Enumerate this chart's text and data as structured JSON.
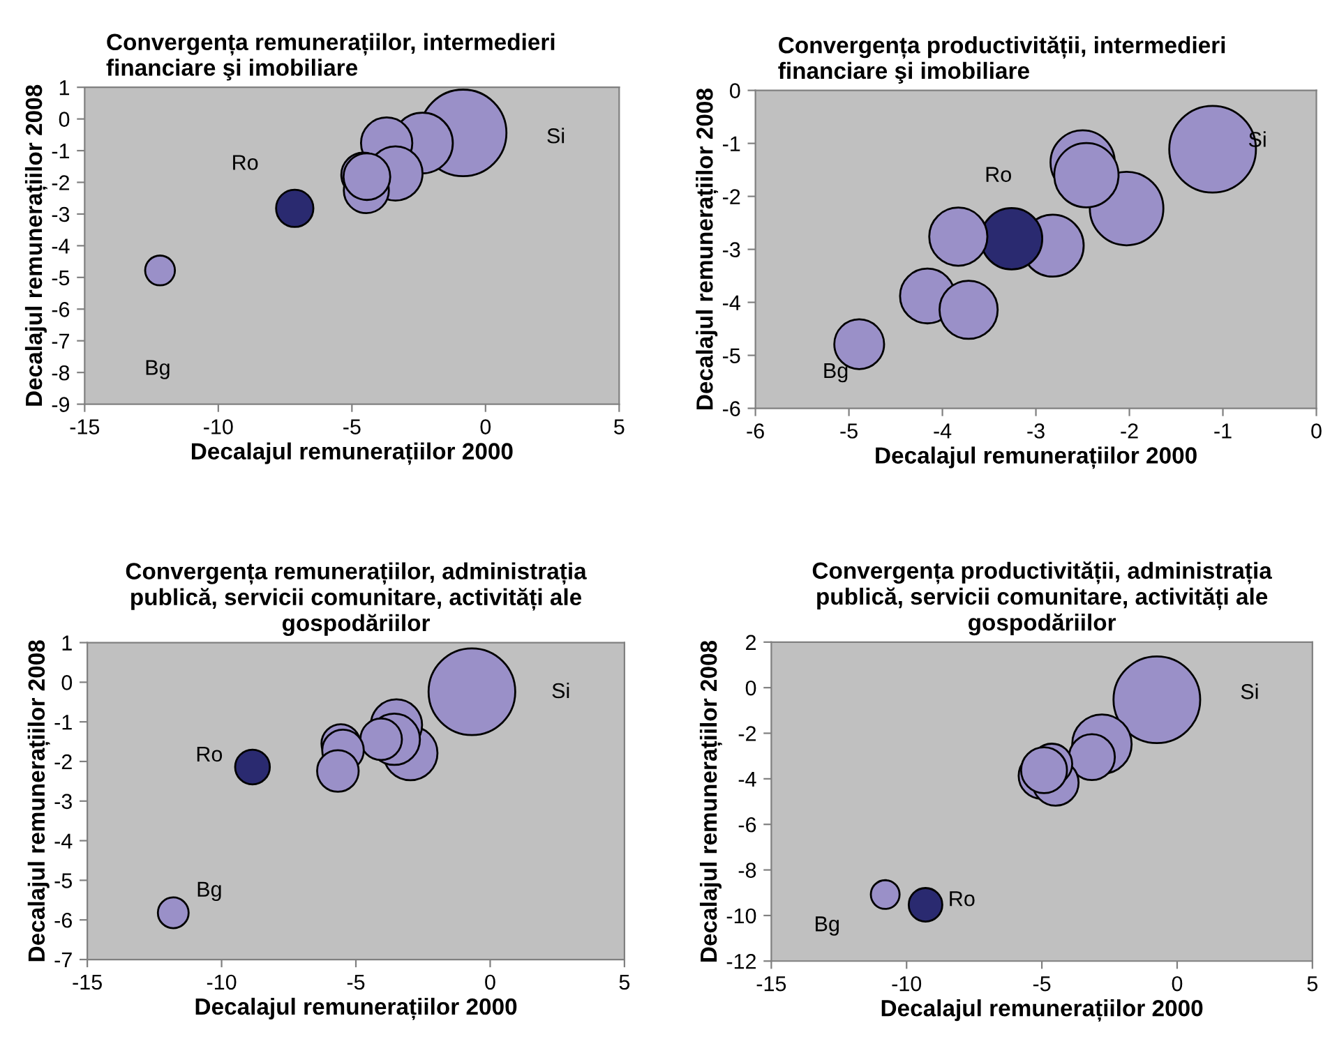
{
  "chart_data": [
    {
      "type": "bubble",
      "title": "Convergența remunerațiilor, intermedieri financiare şi imobiliare",
      "xlabel": "Decalajul remunerațiilor 2000",
      "ylabel": "Decalajul remunerațiilor 2008",
      "relative": false,
      "x": [
        -0.84,
        -2.36,
        -3.7,
        -3.37,
        -4.57,
        -4.46,
        -4.44,
        -7.14,
        -12.18
      ],
      "values": [
        -0.44,
        -0.76,
        -0.76,
        -1.72,
        -1.76,
        -2.26,
        -1.82,
        -2.82,
        -4.78
      ],
      "sizes": [
        1,
        0.49,
        0.35,
        0.39,
        0.26,
        0.27,
        0.29,
        0.185,
        0.118
      ],
      "colors": [
        "#9a90c8",
        "#9a90c8",
        "#9a90c8",
        "#9a90c8",
        "#9a90c8",
        "#9a90c8",
        "#9a90c8",
        "#2a2a70",
        "#9a90c8"
      ],
      "xlim": [
        -15,
        5
      ],
      "xticks": [
        -15,
        -10,
        -5,
        0,
        5
      ],
      "ylim": [
        -9,
        1
      ],
      "yticks": [
        -9,
        -8,
        -7,
        -6,
        -5,
        -4,
        -3,
        -2,
        -1,
        0,
        1
      ],
      "annotations": [
        "Si",
        "Ro",
        "Bg"
      ],
      "grid": false,
      "legend": false
    },
    {
      "type": "bubble",
      "title": "Convergența productivității, intermedieri financiare şi imobiliare",
      "xlabel": "Decalajul remunerațiilor 2000",
      "ylabel": "Decalajul remunerațiilor 2008",
      "x": [
        -1.11,
        -2.03,
        -2.5,
        -2.46,
        -2.82,
        -3.26,
        -3.83,
        -4.16,
        -3.72,
        -4.89
      ],
      "values": [
        -1.11,
        -2.23,
        -1.36,
        -1.6,
        -2.93,
        -2.8,
        -2.76,
        -3.88,
        -4.14,
        -4.79
      ],
      "sizes": [
        1,
        0.72,
        0.55,
        0.55,
        0.51,
        0.5,
        0.45,
        0.4,
        0.45,
        0.33
      ],
      "colors": [
        "#9a90c8",
        "#9a90c8",
        "#9a90c8",
        "#9a90c8",
        "#9a90c8",
        "#2a2a70",
        "#9a90c8",
        "#9a90c8",
        "#9a90c8",
        "#9a90c8"
      ],
      "xlim": [
        -6,
        0
      ],
      "xticks": [
        -6,
        -5,
        -4,
        -3,
        -2,
        -1,
        0
      ],
      "ylim": [
        -6,
        0
      ],
      "yticks": [
        -6,
        -5,
        -4,
        -3,
        -2,
        -1,
        0
      ],
      "annotations": [
        "Si",
        "Ro",
        "Bg"
      ],
      "grid": false,
      "legend": false
    },
    {
      "type": "bubble",
      "title": "Convergența remunerațiilor, administrația publică, servicii comunitare, activități ale gospodăriilor",
      "xlabel": "Decalajul remunerațiilor 2000",
      "ylabel": "Decalajul remunerațiilor 2008",
      "x": [
        -0.68,
        -2.97,
        -3.49,
        -3.57,
        -4.06,
        -5.56,
        -5.48,
        -5.67,
        -8.85,
        -11.8
      ],
      "values": [
        -0.24,
        -1.79,
        -1.08,
        -1.44,
        -1.44,
        -1.55,
        -1.72,
        -2.24,
        -2.14,
        -5.82
      ],
      "sizes": [
        1,
        0.39,
        0.35,
        0.35,
        0.23,
        0.2,
        0.23,
        0.23,
        0.16,
        0.126
      ],
      "colors": [
        "#9a90c8",
        "#9a90c8",
        "#9a90c8",
        "#9a90c8",
        "#9a90c8",
        "#9a90c8",
        "#9a90c8",
        "#9a90c8",
        "#2a2a70",
        "#9a90c8"
      ],
      "xlim": [
        -15,
        5
      ],
      "xticks": [
        -15,
        -10,
        -5,
        0,
        5
      ],
      "ylim": [
        -7,
        1
      ],
      "yticks": [
        -7,
        -6,
        -5,
        -4,
        -3,
        -2,
        -1,
        0,
        1
      ],
      "annotations": [
        "Si",
        "Ro",
        "Bg"
      ],
      "grid": false,
      "legend": false
    },
    {
      "type": "bubble",
      "title": "Convergența productivității, administrația publică, servicii comunitare, activități ale gospodăriilor",
      "xlabel": "Decalajul remunerațiilor 2000",
      "ylabel": "Decalajul remunerațiilor 2008",
      "x": [
        -0.75,
        -2.78,
        -3.15,
        -5.01,
        -4.49,
        -4.63,
        -4.92,
        -9.3,
        -10.79
      ],
      "values": [
        -0.53,
        -2.48,
        -3.05,
        -3.87,
        -4.17,
        -3.35,
        -3.62,
        -9.53,
        -9.08
      ],
      "sizes": [
        1,
        0.47,
        0.28,
        0.28,
        0.28,
        0.22,
        0.28,
        0.15,
        0.11
      ],
      "colors": [
        "#9a90c8",
        "#9a90c8",
        "#9a90c8",
        "#9a90c8",
        "#9a90c8",
        "#9a90c8",
        "#9a90c8",
        "#2a2a70",
        "#9a90c8"
      ],
      "xlim": [
        -15,
        5
      ],
      "xticks": [
        -15,
        -10,
        -5,
        0,
        5
      ],
      "ylim": [
        -12,
        2
      ],
      "yticks": [
        -12,
        -10,
        -8,
        -6,
        -4,
        -2,
        0,
        2
      ],
      "annotations": [
        "Si",
        "Ro",
        "Bg"
      ],
      "grid": false,
      "legend": false
    }
  ]
}
